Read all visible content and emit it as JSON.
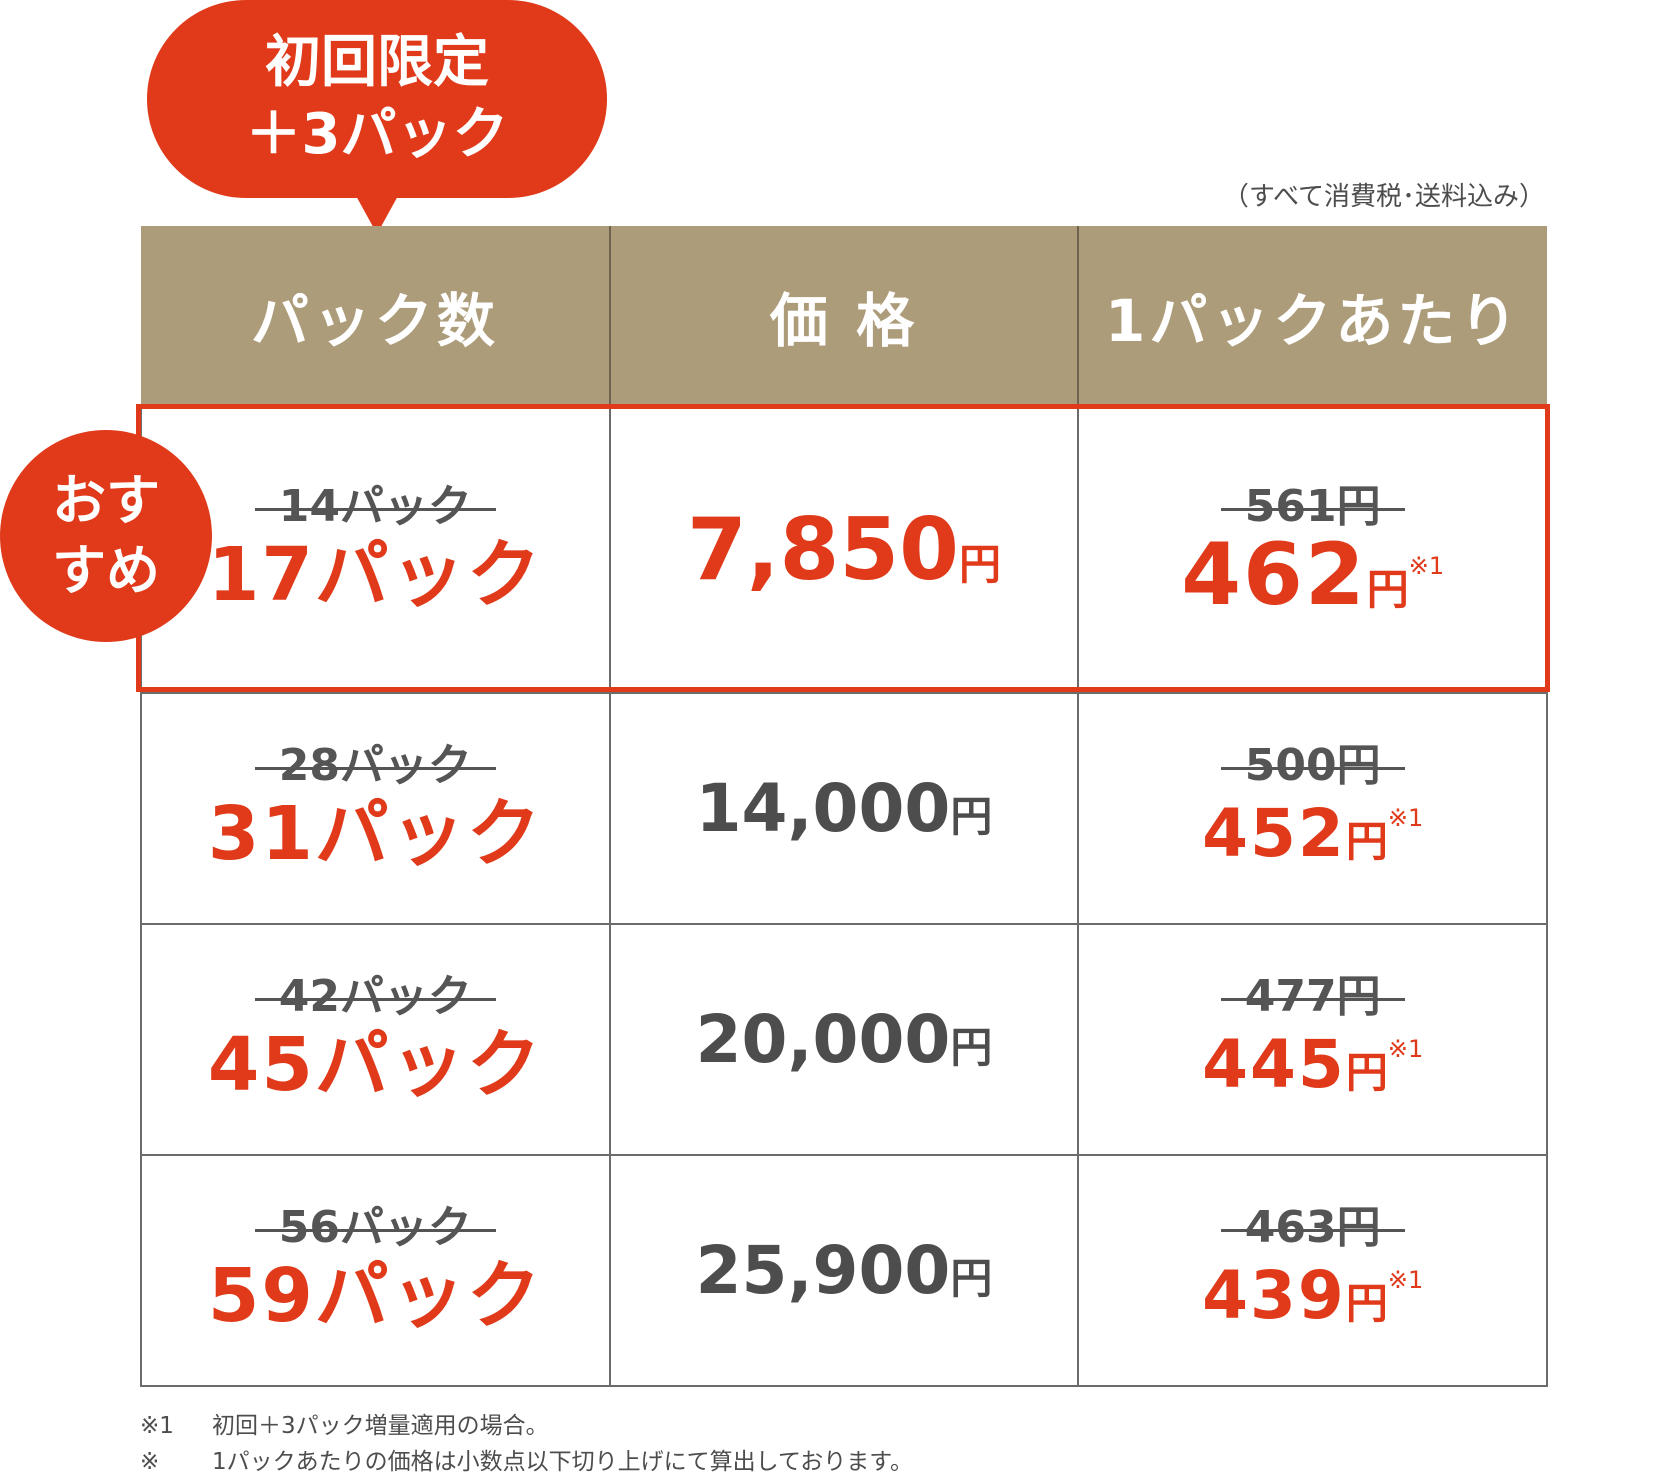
{
  "badge": {
    "line1": "初回限定",
    "line2": "＋3パック"
  },
  "tax_note": "（すべて消費税･送料込み）",
  "headers": {
    "packs": "パック数",
    "price": "価 格",
    "per_pack": "1パックあたり"
  },
  "recommend_badge": {
    "line1": "おす",
    "line2": "すめ"
  },
  "currency_unit": "円",
  "rows": [
    {
      "old_packs": "14パック",
      "new_packs": "17パック",
      "price": "7,850",
      "old_per_pack": "561円",
      "new_per_pack": "462",
      "note": "※1",
      "featured": true
    },
    {
      "old_packs": "28パック",
      "new_packs": "31パック",
      "price": "14,000",
      "old_per_pack": "500円",
      "new_per_pack": "452",
      "note": "※1",
      "featured": false
    },
    {
      "old_packs": "42パック",
      "new_packs": "45パック",
      "price": "20,000",
      "old_per_pack": "477円",
      "new_per_pack": "445",
      "note": "※1",
      "featured": false
    },
    {
      "old_packs": "56パック",
      "new_packs": "59パック",
      "price": "25,900",
      "old_per_pack": "463円",
      "new_per_pack": "439",
      "note": "※1",
      "featured": false
    }
  ],
  "footnotes": [
    {
      "mark": "※1",
      "text": "初回＋3パック増量適用の場合。"
    },
    {
      "mark": "※",
      "text": "1パックあたりの価格は小数点以下切り上げにて算出しております。"
    }
  ],
  "colors": {
    "accent": "#e03a1a",
    "header_bg": "#ad9c7a",
    "text": "#4d4d4d"
  }
}
